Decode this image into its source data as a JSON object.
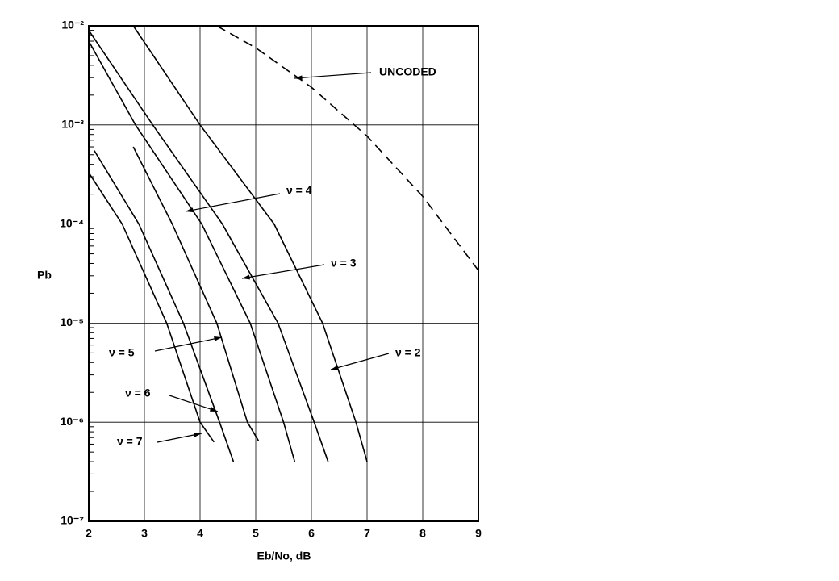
{
  "chart_data": {
    "type": "line",
    "xlabel": "Eb/No, dB",
    "ylabel": "Pb",
    "xlim": [
      2,
      9
    ],
    "xticks": [
      2,
      3,
      4,
      5,
      6,
      7,
      8,
      9
    ],
    "ylim": [
      1e-07,
      0.01
    ],
    "log_y": true,
    "grid": true,
    "yticks": [
      {
        "value": 1e-07,
        "label": "10⁻⁷"
      },
      {
        "value": 1e-06,
        "label": "10⁻⁶"
      },
      {
        "value": 1e-05,
        "label": "10⁻⁵"
      },
      {
        "value": 0.0001,
        "label": "10⁻⁴"
      },
      {
        "value": 0.001,
        "label": "10⁻³"
      },
      {
        "value": 0.01,
        "label": "10⁻²"
      }
    ],
    "series": [
      {
        "name": "UNCODED",
        "color": "#000000",
        "line_style": "dashed",
        "x": [
          4.3,
          5,
          6,
          7,
          8,
          9
        ],
        "values": [
          0.01,
          0.006,
          0.0024,
          0.00077,
          0.00019,
          3.4e-05
        ]
      },
      {
        "name": "ν = 2",
        "color": "#000000",
        "line_style": "solid",
        "x": [
          2.8,
          4,
          5.33,
          6.2,
          6.8,
          7.0
        ],
        "values": [
          0.01,
          0.001,
          0.0001,
          1e-05,
          1e-06,
          4e-07
        ]
      },
      {
        "name": "ν = 3",
        "color": "#000000",
        "line_style": "solid",
        "x": [
          2,
          3.15,
          4.4,
          5.4,
          6.05,
          6.3
        ],
        "values": [
          0.009,
          0.001,
          0.0001,
          1e-05,
          1e-06,
          4e-07
        ]
      },
      {
        "name": "ν = 4",
        "color": "#000000",
        "line_style": "solid",
        "x": [
          2,
          2.84,
          4.03,
          4.9,
          5.5,
          5.7
        ],
        "values": [
          0.007,
          0.001,
          0.0001,
          1e-05,
          1e-06,
          4e-07
        ]
      },
      {
        "name": "ν = 5",
        "color": "#000000",
        "line_style": "solid",
        "x": [
          2.8,
          3.5,
          4.3,
          4.85,
          5.05
        ],
        "values": [
          0.0006,
          0.0001,
          1e-05,
          1e-06,
          6.5e-07
        ]
      },
      {
        "name": "ν = 6",
        "color": "#000000",
        "line_style": "solid",
        "x": [
          2.1,
          2.9,
          3.7,
          4.35,
          4.6
        ],
        "values": [
          0.00055,
          0.0001,
          1e-05,
          1e-06,
          4e-07
        ]
      },
      {
        "name": "ν = 7",
        "color": "#000000",
        "line_style": "solid",
        "x": [
          2,
          2.6,
          3.4,
          4,
          4.25
        ],
        "values": [
          0.00033,
          0.0001,
          1e-05,
          1e-06,
          6.3e-07
        ]
      }
    ]
  }
}
